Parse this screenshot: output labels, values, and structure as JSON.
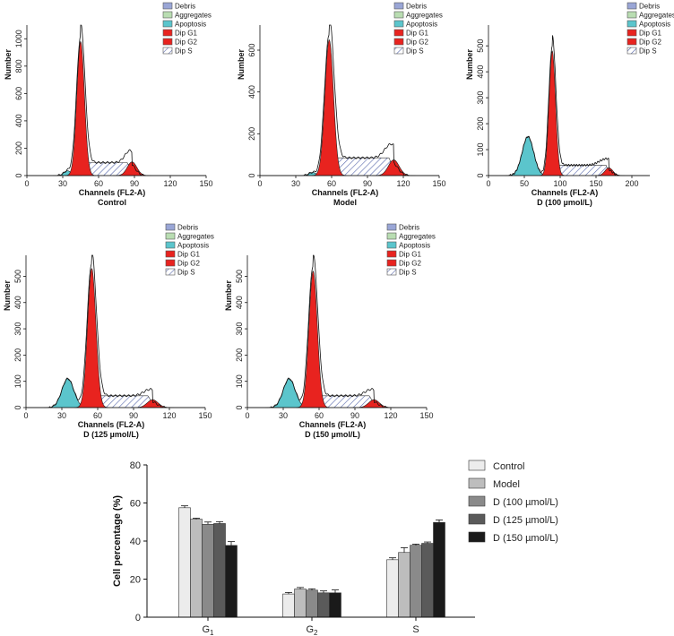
{
  "histogram_legend": [
    "Debris",
    "Aggregates",
    "Apoptosis",
    "Dip G1",
    "Dip G2",
    "Dip S"
  ],
  "histogram_legend_colors": [
    "#9aa6d6",
    "#b9ddb2",
    "#5bc5cc",
    "#e8231f",
    "#e8231f",
    "#ffffff"
  ],
  "chart_data": [
    {
      "type": "area",
      "xlabel": "Channels (FL2-A)",
      "caption": "Control",
      "ylabel": "Number",
      "xlim": [
        0,
        150
      ],
      "ylim": [
        0,
        1100
      ],
      "xticks": [
        0,
        30,
        60,
        90,
        120,
        150
      ],
      "yticks": [
        0,
        200,
        400,
        600,
        800,
        1000
      ],
      "g1": {
        "center": 45,
        "sigma": 3.2,
        "height": 980
      },
      "g2": {
        "center": 88,
        "sigma": 4,
        "height": 100
      },
      "apoptosis": {
        "center": 34,
        "sigma": 3,
        "height": 35
      },
      "s_phase": {
        "from": 45,
        "to": 88,
        "level": 95
      },
      "overlay_bumps": [
        {
          "center": 85,
          "sigma": 4,
          "height": 90
        }
      ]
    },
    {
      "type": "area",
      "xlabel": "Channels (FL2-A)",
      "caption": "Model",
      "ylabel": "Number",
      "xlim": [
        0,
        150
      ],
      "ylim": [
        0,
        720
      ],
      "xticks": [
        0,
        30,
        60,
        90,
        120,
        150
      ],
      "yticks": [
        0,
        200,
        400,
        600
      ],
      "g1": {
        "center": 58,
        "sigma": 3.6,
        "height": 650
      },
      "g2": {
        "center": 112,
        "sigma": 4.5,
        "height": 75
      },
      "apoptosis": {
        "center": 44,
        "sigma": 3,
        "height": 15
      },
      "s_phase": {
        "from": 58,
        "to": 112,
        "level": 85
      },
      "overlay_bumps": [
        {
          "center": 108,
          "sigma": 5,
          "height": 70
        }
      ]
    },
    {
      "type": "area",
      "xlabel": "Channels (FL2-A)",
      "caption": "D (100 µmol/L)",
      "ylabel": "Number",
      "xlim": [
        0,
        225
      ],
      "ylim": [
        0,
        580
      ],
      "xticks": [
        0,
        50,
        100,
        150,
        200
      ],
      "yticks": [
        0,
        100,
        200,
        300,
        400,
        500
      ],
      "g1": {
        "center": 89,
        "sigma": 4.5,
        "height": 480
      },
      "g2": {
        "center": 168,
        "sigma": 5.5,
        "height": 30
      },
      "apoptosis": {
        "center": 55,
        "sigma": 8,
        "height": 150
      },
      "s_phase": {
        "from": 89,
        "to": 168,
        "level": 40
      },
      "overlay_bumps": [
        {
          "center": 160,
          "sigma": 8,
          "height": 30
        }
      ]
    },
    {
      "type": "area",
      "xlabel": "Channels (FL2-A)",
      "caption": "D (125 µmol/L)",
      "ylabel": "Number",
      "xlim": [
        0,
        150
      ],
      "ylim": [
        0,
        580
      ],
      "xticks": [
        0,
        30,
        60,
        90,
        120,
        150
      ],
      "yticks": [
        0,
        100,
        200,
        300,
        400,
        500
      ],
      "g1": {
        "center": 55,
        "sigma": 3.5,
        "height": 530
      },
      "g2": {
        "center": 106,
        "sigma": 4.5,
        "height": 30
      },
      "apoptosis": {
        "center": 35,
        "sigma": 5,
        "height": 110
      },
      "s_phase": {
        "from": 55,
        "to": 106,
        "level": 45
      },
      "overlay_bumps": [
        {
          "center": 102,
          "sigma": 5,
          "height": 25
        }
      ]
    },
    {
      "type": "area",
      "xlabel": "Channels (FL2-A)",
      "caption": "D (150 µmol/L)",
      "ylabel": "Number",
      "xlim": [
        0,
        150
      ],
      "ylim": [
        0,
        580
      ],
      "xticks": [
        0,
        30,
        60,
        90,
        120,
        150
      ],
      "yticks": [
        0,
        100,
        200,
        300,
        400,
        500
      ],
      "g1": {
        "center": 55,
        "sigma": 3.5,
        "height": 520
      },
      "g2": {
        "center": 106,
        "sigma": 4.5,
        "height": 30
      },
      "apoptosis": {
        "center": 35,
        "sigma": 5,
        "height": 110
      },
      "s_phase": {
        "from": 55,
        "to": 106,
        "level": 45
      },
      "overlay_bumps": [
        {
          "center": 102,
          "sigma": 5,
          "height": 25
        }
      ]
    },
    {
      "type": "bar",
      "categories": [
        "G1",
        "G2",
        "S"
      ],
      "ylabel": "Cell percentage (%)",
      "ylim": [
        0,
        80
      ],
      "yticks": [
        0,
        20,
        40,
        60,
        80
      ],
      "legend_position": "right",
      "series": [
        {
          "name": "Control",
          "color": "#ececec",
          "values": [
            57.5,
            12.2,
            30.2
          ],
          "errors": [
            1.0,
            0.8,
            1.0
          ]
        },
        {
          "name": "Model",
          "color": "#bdbdbd",
          "values": [
            51.5,
            14.8,
            34.0
          ],
          "errors": [
            0.5,
            0.8,
            2.5
          ]
        },
        {
          "name": "D (100 µmol/L)",
          "color": "#8a8a8a",
          "values": [
            48.8,
            14.2,
            37.8
          ],
          "errors": [
            1.2,
            0.7,
            0.6
          ]
        },
        {
          "name": "D (125 µmol/L)",
          "color": "#5a5a5a",
          "values": [
            49.2,
            12.8,
            38.8
          ],
          "errors": [
            1.0,
            1.0,
            0.7
          ]
        },
        {
          "name": "D (150 µmol/L)",
          "color": "#1a1a1a",
          "values": [
            37.7,
            12.8,
            49.8
          ],
          "errors": [
            2.0,
            1.5,
            1.3
          ]
        }
      ]
    }
  ]
}
